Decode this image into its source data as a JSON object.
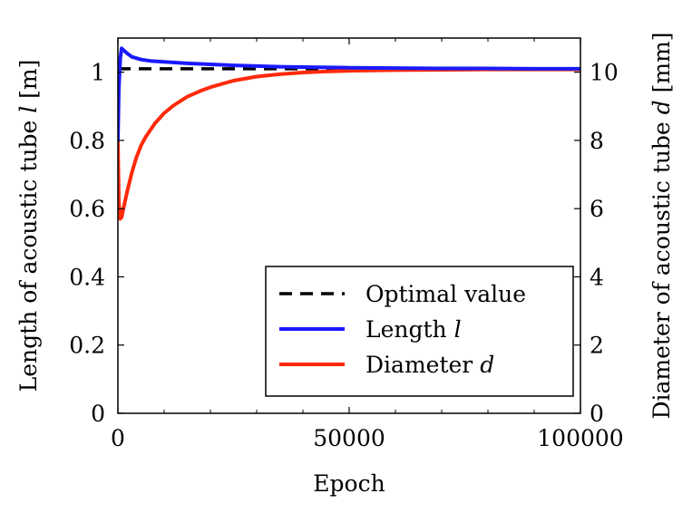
{
  "chart_data": {
    "type": "line",
    "xlabel": "Epoch",
    "ylabel_left": "Length of acoustic tube l [m]",
    "ylabel_left_parts": {
      "pre": "Length of acoustic tube ",
      "var": "l",
      "post": " [m]"
    },
    "ylabel_right": "Diameter of acoustic tube d [mm]",
    "ylabel_right_parts": {
      "pre": "Diameter of acoustic tube ",
      "var": "d",
      "post": " [mm]"
    },
    "xlim": [
      0,
      100000
    ],
    "ylim_left": [
      0,
      1.1
    ],
    "ylim_right": [
      0,
      11
    ],
    "x_ticks": [
      0,
      50000,
      100000
    ],
    "x_tick_labels": [
      "0",
      "50000",
      "100000"
    ],
    "y_left_ticks": [
      0,
      0.2,
      0.4,
      0.6,
      0.8,
      1
    ],
    "y_left_tick_labels": [
      "0",
      "0.2",
      "0.4",
      "0.6",
      "0.8",
      "1"
    ],
    "y_right_ticks": [
      0,
      2,
      4,
      6,
      8,
      10
    ],
    "y_right_tick_labels": [
      "0",
      "2",
      "4",
      "6",
      "8",
      "10"
    ],
    "grid": false,
    "legend_position": "bottom-right",
    "series": [
      {
        "name": "Optimal value",
        "legend_parts": {
          "pre": "Optimal value",
          "var": ""
        },
        "axis": "left",
        "style": "dashed",
        "color": "#000000",
        "x": [
          0,
          100000
        ],
        "y": [
          1.01,
          1.01
        ]
      },
      {
        "name": "Length l",
        "legend_parts": {
          "pre": "Length ",
          "var": "l"
        },
        "axis": "left",
        "style": "solid",
        "color": "#1a1aff",
        "x": [
          0,
          200,
          500,
          800,
          1200,
          2000,
          3000,
          5000,
          7000,
          10000,
          15000,
          20000,
          25000,
          30000,
          35000,
          40000,
          50000,
          60000,
          70000,
          80000,
          90000,
          100000
        ],
        "y": [
          0.8,
          0.95,
          1.04,
          1.07,
          1.065,
          1.055,
          1.045,
          1.037,
          1.033,
          1.03,
          1.026,
          1.023,
          1.02,
          1.018,
          1.016,
          1.015,
          1.013,
          1.012,
          1.011,
          1.011,
          1.01,
          1.01
        ]
      },
      {
        "name": "Diameter d",
        "legend_parts": {
          "pre": "Diameter ",
          "var": "d"
        },
        "axis": "right",
        "style": "solid",
        "color": "#ff2a0a",
        "x": [
          0,
          200,
          500,
          800,
          1200,
          2000,
          3000,
          4000,
          5000,
          6000,
          8000,
          10000,
          12000,
          15000,
          18000,
          20000,
          25000,
          30000,
          35000,
          40000,
          45000,
          50000,
          60000,
          70000,
          80000,
          90000,
          100000
        ],
        "y": [
          8.0,
          6.2,
          5.7,
          5.75,
          6.0,
          6.5,
          7.05,
          7.5,
          7.85,
          8.1,
          8.5,
          8.8,
          9.02,
          9.28,
          9.46,
          9.56,
          9.75,
          9.87,
          9.94,
          9.99,
          10.02,
          10.04,
          10.06,
          10.07,
          10.08,
          10.08,
          10.08
        ]
      }
    ]
  }
}
